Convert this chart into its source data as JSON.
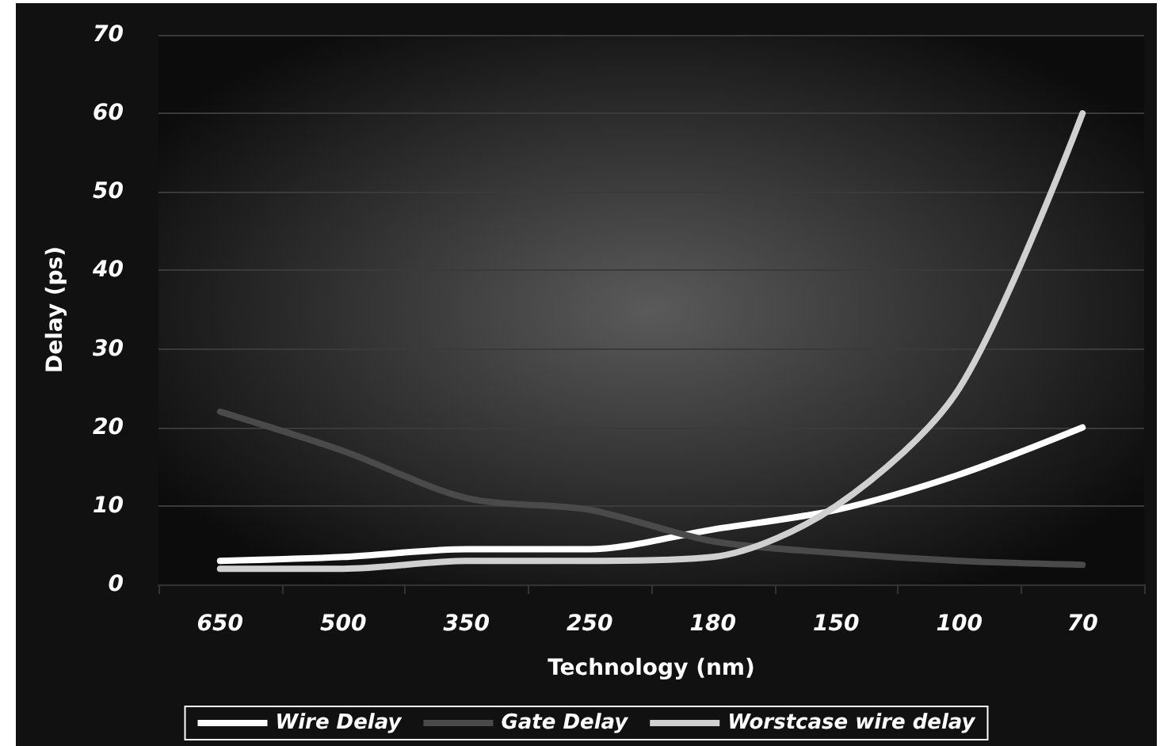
{
  "chart_data": {
    "type": "line",
    "xlabel": "Technology (nm)",
    "ylabel": "Delay (ps)",
    "categories": [
      "650",
      "500",
      "350",
      "250",
      "180",
      "150",
      "100",
      "70"
    ],
    "series": [
      {
        "name": "Wire Delay",
        "color": "#ffffff",
        "values": [
          3,
          3.5,
          4.5,
          4.5,
          7,
          9.5,
          14,
          20
        ]
      },
      {
        "name": "Gate Delay",
        "color": "#4a4a4a",
        "values": [
          22,
          17,
          11,
          9.5,
          5.5,
          4,
          3,
          2.5
        ]
      },
      {
        "name": "Worstcase wire delay",
        "color": "#d0d0d0",
        "values": [
          2,
          2,
          3,
          3,
          3.5,
          10,
          25,
          60
        ]
      }
    ],
    "ylim": [
      0,
      70
    ],
    "yticks": [
      0,
      10,
      20,
      30,
      40,
      50,
      60,
      70
    ],
    "grid": "y",
    "legend": "bottom",
    "marker": "none",
    "line_style": "solid"
  }
}
